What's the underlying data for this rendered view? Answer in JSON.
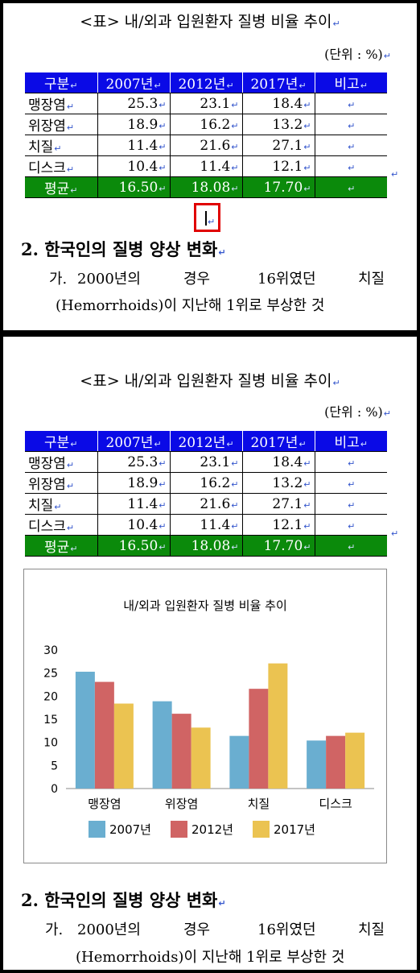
{
  "caption": "<표> 내/외과 입원환자 질병 비율 추이",
  "unit": "(단위 : %)",
  "table": {
    "headers": [
      "구분",
      "2007년",
      "2012년",
      "2017년",
      "비고"
    ],
    "rows": [
      {
        "label": "맹장염",
        "values": [
          "25.3",
          "23.1",
          "18.4"
        ],
        "note": ""
      },
      {
        "label": "위장염",
        "values": [
          "18.9",
          "16.2",
          "13.2"
        ],
        "note": ""
      },
      {
        "label": "치질",
        "values": [
          "11.4",
          "21.6",
          "27.1"
        ],
        "note": ""
      },
      {
        "label": "디스크",
        "values": [
          "10.4",
          "11.4",
          "12.1"
        ],
        "note": ""
      }
    ],
    "average": {
      "label": "평균",
      "values": [
        "16.50",
        "18.08",
        "17.70"
      ],
      "note": ""
    }
  },
  "section_heading": "2. 한국인의 질병 양상 변화",
  "paragraph": {
    "line1": [
      "가.",
      "2000년의",
      "경우",
      "16위였던",
      "치질"
    ],
    "line2": "(Hemorrhoids)이 지난해 1위로 부상한 것"
  },
  "colors": {
    "header_bg": "#0a0ae6",
    "average_bg": "#0b8a0b",
    "cursor_box": "#e00000",
    "series": [
      "#6aaed0",
      "#d06464",
      "#ebc351"
    ]
  },
  "chart_data": {
    "type": "bar",
    "title": "내/외과 입원환자 질병 비율 추이",
    "categories": [
      "맹장염",
      "위장염",
      "치질",
      "디스크"
    ],
    "series": [
      {
        "name": "2007년",
        "values": [
          25.3,
          18.9,
          11.4,
          10.4
        ]
      },
      {
        "name": "2012년",
        "values": [
          23.1,
          16.2,
          21.6,
          11.4
        ]
      },
      {
        "name": "2017년",
        "values": [
          18.4,
          13.2,
          27.1,
          12.1
        ]
      }
    ],
    "ylim": [
      0,
      30
    ],
    "yticks": [
      0,
      5,
      10,
      15,
      20,
      25,
      30
    ],
    "grid": false,
    "legend": "bottom",
    "xlabel": "",
    "ylabel": ""
  }
}
